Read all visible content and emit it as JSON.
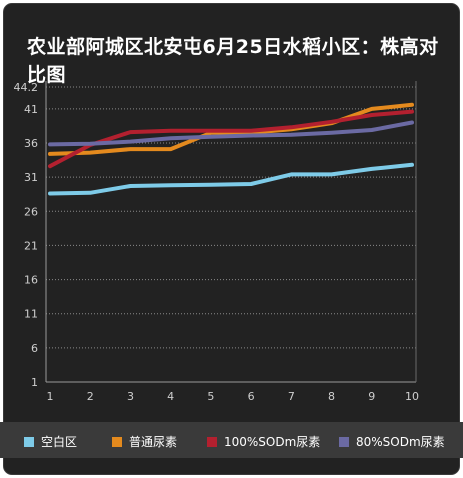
{
  "chart_data": {
    "type": "line",
    "title": "农业部阿城区北安屯6月25日水稻小区：株高对比图",
    "xlabel": "",
    "ylabel": "",
    "categories": [
      "1",
      "2",
      "3",
      "4",
      "5",
      "6",
      "7",
      "8",
      "9",
      "10"
    ],
    "yticks": [
      "1",
      "6",
      "11",
      "16",
      "21",
      "26",
      "31",
      "36",
      "41",
      "44.2"
    ],
    "ylim": [
      1,
      44.2
    ],
    "grid": true,
    "legend_position": "bottom",
    "series": [
      {
        "name": "空白区",
        "color": "#7ecbe8",
        "values": [
          28.6,
          28.7,
          29.7,
          29.8,
          29.9,
          30.0,
          31.4,
          31.4,
          32.2,
          32.8
        ]
      },
      {
        "name": "普通尿素",
        "color": "#e48a1e",
        "values": [
          34.4,
          34.6,
          35.1,
          35.1,
          37.5,
          37.5,
          38.0,
          38.9,
          41.0,
          41.6
        ]
      },
      {
        "name": "100%SODm尿素",
        "color": "#b3202f",
        "values": [
          32.6,
          35.7,
          37.6,
          37.8,
          37.8,
          37.8,
          38.3,
          39.1,
          40.1,
          40.6
        ]
      },
      {
        "name": "80%SODm尿素",
        "color": "#6b6aa3",
        "values": [
          35.8,
          35.9,
          36.2,
          36.7,
          36.9,
          37.1,
          37.2,
          37.5,
          37.9,
          39.0
        ]
      }
    ]
  }
}
